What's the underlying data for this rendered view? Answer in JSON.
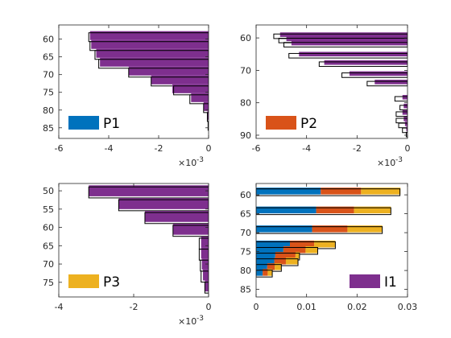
{
  "colors": {
    "purple": "#7E2F8E",
    "blue": "#0072BD",
    "orange": "#D95319",
    "yellow": "#EDB120",
    "outline": "#000000",
    "axis": "#262626"
  },
  "chart_data": [
    {
      "type": "bar",
      "orientation": "horizontal",
      "legend": "P1",
      "legend_color": "#0072BD",
      "legend_location": "bottom-left",
      "xlim": [
        -0.006,
        0
      ],
      "ylim": [
        56,
        88
      ],
      "y_reversed": true,
      "xticks": [
        -6,
        -4,
        -2,
        0
      ],
      "xtick_labels": [
        "-6",
        "-4",
        "-2",
        "0"
      ],
      "x_exponent": "-3",
      "yticks": [
        60,
        65,
        70,
        75,
        80,
        85
      ],
      "ytick_labels": [
        "60",
        "65",
        "70",
        "75",
        "80",
        "85"
      ],
      "bar_height": 2.5,
      "y": [
        59,
        61.5,
        64,
        66.5,
        69,
        71.5,
        74,
        76.5,
        79,
        81.5,
        84,
        86.5
      ],
      "filled_values": [
        -0.00475,
        -0.0047,
        -0.0045,
        -0.00435,
        -0.0032,
        -0.0023,
        -0.00145,
        -0.0007,
        -0.0002,
        -5e-05,
        -1e-05,
        0
      ],
      "outline_values": [
        -0.0048,
        -0.00475,
        -0.00455,
        -0.0044,
        -0.0032,
        -0.0023,
        -0.0014,
        -0.00075,
        -0.0002,
        -5e-05,
        -2e-05,
        0
      ]
    },
    {
      "type": "bar",
      "orientation": "horizontal",
      "legend": "P2",
      "legend_color": "#D95319",
      "legend_location": "bottom-left",
      "xlim": [
        -0.006,
        0
      ],
      "ylim": [
        56,
        91
      ],
      "y_reversed": true,
      "xticks": [
        -6,
        -4,
        -2,
        0
      ],
      "xtick_labels": [
        "-6",
        "-4",
        "-2",
        "0"
      ],
      "x_exponent": "-3",
      "yticks": [
        60,
        70,
        80,
        90
      ],
      "ytick_labels": [
        "60",
        "70",
        "80",
        "90"
      ],
      "bar_height": 1.4,
      "y": [
        59,
        60.3,
        61.6,
        65,
        67.6,
        71,
        73.6,
        78.3,
        81,
        83,
        85,
        86.5,
        88,
        89.3
      ],
      "filled_values": [
        -0.00505,
        -0.0048,
        -0.0046,
        -0.0043,
        -0.0033,
        -0.0023,
        -0.0013,
        -0.0002,
        -0.00015,
        -0.0002,
        -0.00015,
        -0.0001,
        -5e-05,
        -2e-05
      ],
      "outline_values": [
        -0.0053,
        -0.0051,
        -0.0049,
        -0.0047,
        -0.0035,
        -0.0026,
        -0.0016,
        -0.0005,
        -0.0003,
        -0.00045,
        -0.00045,
        -0.00035,
        -0.0002,
        -5e-05
      ]
    },
    {
      "type": "bar",
      "orientation": "horizontal",
      "legend": "P3",
      "legend_color": "#EDB120",
      "legend_location": "bottom-left",
      "xlim": [
        -0.004,
        0
      ],
      "ylim": [
        48,
        79
      ],
      "y_reversed": true,
      "xticks": [
        -4,
        -2,
        0
      ],
      "xtick_labels": [
        "-4",
        "-2",
        "0"
      ],
      "x_exponent": "-3",
      "yticks": [
        50,
        55,
        60,
        65,
        70,
        75
      ],
      "ytick_labels": [
        "50",
        "55",
        "60",
        "65",
        "70",
        "75"
      ],
      "bar_height": 3,
      "y": [
        50,
        53.5,
        57,
        60.5,
        64,
        67,
        70,
        73,
        76
      ],
      "filled_values": [
        -0.0032,
        -0.0024,
        -0.0017,
        -0.00095,
        -0.0002,
        -0.0002,
        -0.00018,
        -0.00015,
        -0.0001
      ],
      "outline_values": [
        -0.0032,
        -0.0024,
        -0.0017,
        -0.00095,
        -0.00025,
        -0.00025,
        -0.00022,
        -0.0002,
        -0.0001
      ]
    },
    {
      "type": "bar",
      "orientation": "horizontal",
      "stacked": true,
      "legend": "I1",
      "legend_color": "#7E2F8E",
      "legend_location": "bottom-right",
      "xlim": [
        0,
        0.03
      ],
      "ylim": [
        57,
        87
      ],
      "y_reversed": true,
      "xticks": [
        0,
        0.01,
        0.02,
        0.03
      ],
      "xtick_labels": [
        "0",
        "0.01",
        "0.02",
        "0.03"
      ],
      "yticks": [
        60,
        65,
        70,
        75,
        80,
        85
      ],
      "ytick_labels": [
        "60",
        "65",
        "70",
        "75",
        "80",
        "85"
      ],
      "bar_height": 1.8,
      "y": [
        59,
        64,
        69,
        73,
        74.5,
        76,
        77.5,
        79,
        80.5
      ],
      "series": [
        {
          "color": "#0072BD",
          "values": [
            0.0128,
            0.0119,
            0.0111,
            0.0067,
            0.0054,
            0.0038,
            0.0036,
            0.0022,
            0.0013
          ]
        },
        {
          "color": "#D95319",
          "values": [
            0.008,
            0.0075,
            0.007,
            0.0048,
            0.0044,
            0.004,
            0.0023,
            0.0015,
            0.001
          ]
        },
        {
          "color": "#EDB120",
          "values": [
            0.0078,
            0.0073,
            0.0069,
            0.0042,
            0.0024,
            0.0008,
            0.0024,
            0.0013,
            0.0009
          ]
        }
      ],
      "outline_values": [
        0.0285,
        0.0267,
        0.025,
        0.0157,
        0.0122,
        0.0086,
        0.0083,
        0.005,
        0.0032
      ]
    }
  ]
}
